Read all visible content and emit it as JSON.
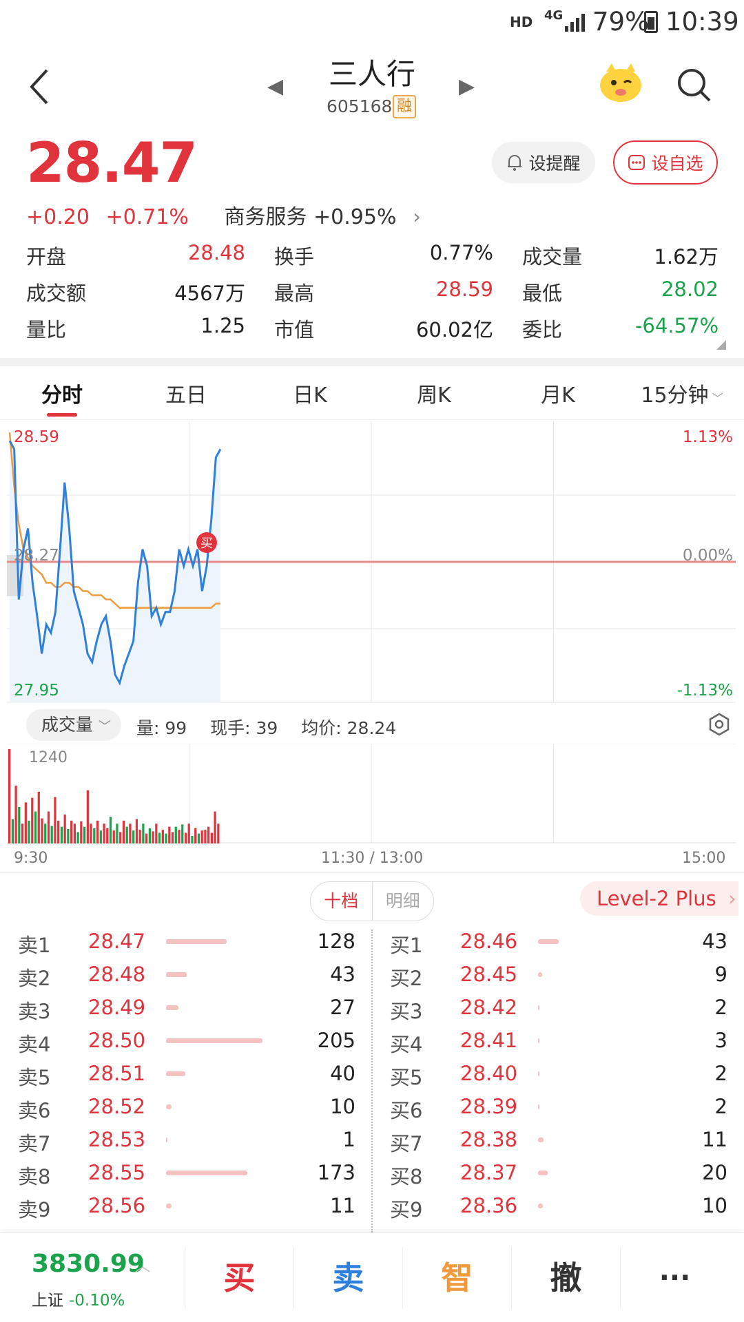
{
  "status_bar": {
    "hd": "HD",
    "network": "4G",
    "battery": "79%",
    "time": "10:39"
  },
  "header": {
    "title": "三人行",
    "code": "605168",
    "margin_badge": "融"
  },
  "quote": {
    "price": "28.47",
    "change": "+0.20",
    "change_pct": "+0.71%",
    "sector": "商务服务 +0.95%",
    "alert_label": "设提醒",
    "fav_label": "设自选"
  },
  "stats": [
    [
      {
        "label": "开盘",
        "value": "28.48",
        "color": "red"
      },
      {
        "label": "换手",
        "value": "0.77%",
        "color": "dark"
      },
      {
        "label": "成交量",
        "value": "1.62万",
        "color": "dark"
      }
    ],
    [
      {
        "label": "成交额",
        "value": "4567万",
        "color": "dark"
      },
      {
        "label": "最高",
        "value": "28.59",
        "color": "red"
      },
      {
        "label": "最低",
        "value": "28.02",
        "color": "green"
      }
    ],
    [
      {
        "label": "量比",
        "value": "1.25",
        "color": "dark"
      },
      {
        "label": "市值",
        "value": "60.02亿",
        "color": "dark"
      },
      {
        "label": "委比",
        "value": "-64.57%",
        "color": "green"
      }
    ]
  ],
  "tabs": [
    "分时",
    "五日",
    "日K",
    "周K",
    "月K",
    "15分钟"
  ],
  "chart": {
    "high": "28.59",
    "low": "27.95",
    "prev_close": "28.27",
    "high_pct": "1.13%",
    "zero_pct": "0.00%",
    "low_pct": "-1.13%",
    "buy_marker": "买",
    "price_series": [
      28.56,
      28.54,
      28.18,
      28.3,
      28.35,
      28.22,
      28.14,
      28.05,
      28.12,
      28.1,
      28.15,
      28.3,
      28.46,
      28.35,
      28.2,
      28.16,
      28.12,
      28.05,
      28.03,
      28.08,
      28.12,
      28.14,
      28.08,
      28.0,
      27.98,
      28.02,
      28.05,
      28.08,
      28.22,
      28.3,
      28.26,
      28.14,
      28.16,
      28.12,
      28.15,
      28.15,
      28.2,
      28.3,
      28.26,
      28.3,
      28.26,
      28.3,
      28.2,
      28.26,
      28.37,
      28.52,
      28.54
    ],
    "avg_series": [
      28.58,
      28.45,
      28.36,
      28.3,
      28.28,
      28.26,
      28.25,
      28.24,
      28.22,
      28.22,
      28.21,
      28.21,
      28.22,
      28.22,
      28.21,
      28.21,
      28.2,
      28.2,
      28.19,
      28.19,
      28.19,
      28.18,
      28.18,
      28.17,
      28.16,
      28.16,
      28.16,
      28.16,
      28.16,
      28.16,
      28.16,
      28.16,
      28.16,
      28.16,
      28.16,
      28.16,
      28.16,
      28.16,
      28.16,
      28.16,
      28.16,
      28.16,
      28.16,
      28.16,
      28.16,
      28.17,
      28.17
    ]
  },
  "volume": {
    "selector": "成交量",
    "qty": "量: 99",
    "now": "现手: 39",
    "avg": "均价: 28.24",
    "max_label": "1240",
    "bars": [
      1240,
      320,
      760,
      480,
      260,
      540,
      300,
      600,
      420,
      680,
      330,
      260,
      420,
      230,
      610,
      300,
      220,
      380,
      190,
      300,
      260,
      150,
      290,
      220,
      700,
      260,
      200,
      300,
      170,
      260,
      200,
      350,
      170,
      260,
      150,
      300,
      220,
      260,
      170,
      320,
      180,
      260,
      130,
      200,
      160,
      260,
      140,
      180,
      130,
      220,
      150,
      220,
      180,
      250,
      140,
      260,
      100,
      200,
      130,
      170,
      180,
      220,
      140,
      420,
      260
    ],
    "bar_colors": "rgrgrrgrgrrgrgrrgrgrrgrgrrgrgrrgrgrrgrgrrgrgrrgrgrrgrgrrgrgrrrr"
  },
  "time_axis": {
    "start": "9:30",
    "mid": "11:30 / 13:00",
    "end": "15:00"
  },
  "order_book": {
    "tab_active": "十档",
    "tab_inactive": "明细",
    "level2": "Level-2 Plus",
    "asks": [
      {
        "label": "卖1",
        "price": "28.47",
        "qty": "128",
        "ratio": 0.35
      },
      {
        "label": "卖2",
        "price": "28.48",
        "qty": "43",
        "ratio": 0.12
      },
      {
        "label": "卖3",
        "price": "28.49",
        "qty": "27",
        "ratio": 0.07
      },
      {
        "label": "卖4",
        "price": "28.50",
        "qty": "205",
        "ratio": 0.56
      },
      {
        "label": "卖5",
        "price": "28.51",
        "qty": "40",
        "ratio": 0.11
      },
      {
        "label": "卖6",
        "price": "28.52",
        "qty": "10",
        "ratio": 0.03
      },
      {
        "label": "卖7",
        "price": "28.53",
        "qty": "1",
        "ratio": 0.005
      },
      {
        "label": "卖8",
        "price": "28.55",
        "qty": "173",
        "ratio": 0.47
      },
      {
        "label": "卖9",
        "price": "28.56",
        "qty": "11",
        "ratio": 0.03
      }
    ],
    "bids": [
      {
        "label": "买1",
        "price": "28.46",
        "qty": "43",
        "ratio": 0.12
      },
      {
        "label": "买2",
        "price": "28.45",
        "qty": "9",
        "ratio": 0.025
      },
      {
        "label": "买3",
        "price": "28.42",
        "qty": "2",
        "ratio": 0.006
      },
      {
        "label": "买4",
        "price": "28.41",
        "qty": "3",
        "ratio": 0.008
      },
      {
        "label": "买5",
        "price": "28.40",
        "qty": "2",
        "ratio": 0.006
      },
      {
        "label": "买6",
        "price": "28.39",
        "qty": "2",
        "ratio": 0.006
      },
      {
        "label": "买7",
        "price": "28.38",
        "qty": "11",
        "ratio": 0.03
      },
      {
        "label": "买8",
        "price": "28.37",
        "qty": "20",
        "ratio": 0.055
      },
      {
        "label": "买9",
        "price": "28.36",
        "qty": "10",
        "ratio": 0.028
      }
    ]
  },
  "bottom": {
    "index_value": "3830.99",
    "index_name": "上证",
    "index_change": "-0.10%",
    "buy": "买",
    "sell": "卖",
    "smart": "智",
    "cancel": "撤",
    "more": "···"
  },
  "colors": {
    "red": "#e0333b",
    "green": "#1aa34a",
    "blue": "#2f7fdc",
    "orange": "#f09a3e"
  }
}
